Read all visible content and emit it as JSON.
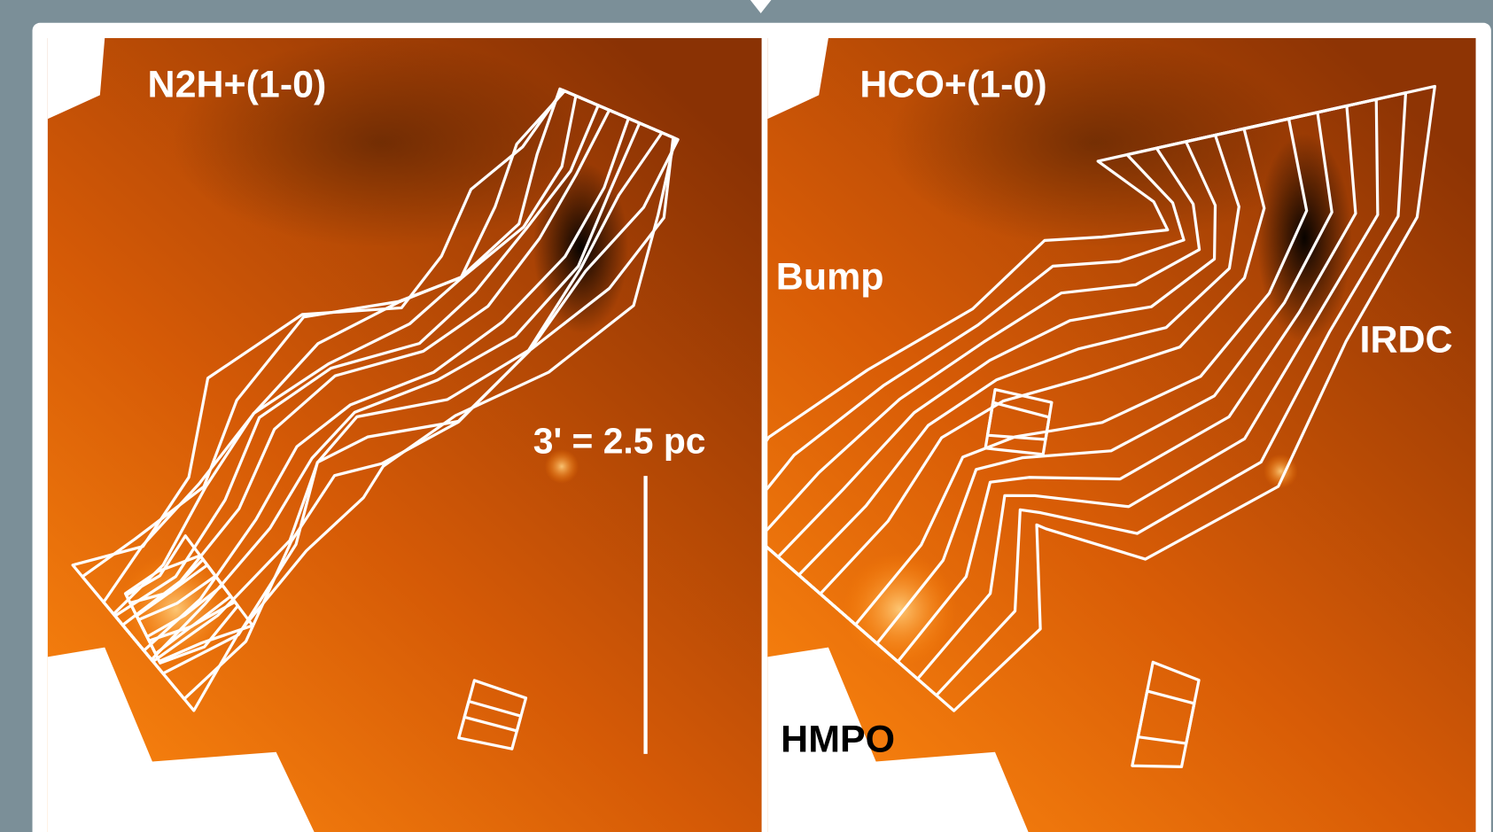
{
  "panels": [
    {
      "title": "N2H+(1-0)",
      "labels": [
        "3' = 2.5 pc"
      ]
    },
    {
      "title": "HCO+(1-0)",
      "labels": [
        "Bump",
        "IRDC",
        "HMPO"
      ]
    }
  ]
}
